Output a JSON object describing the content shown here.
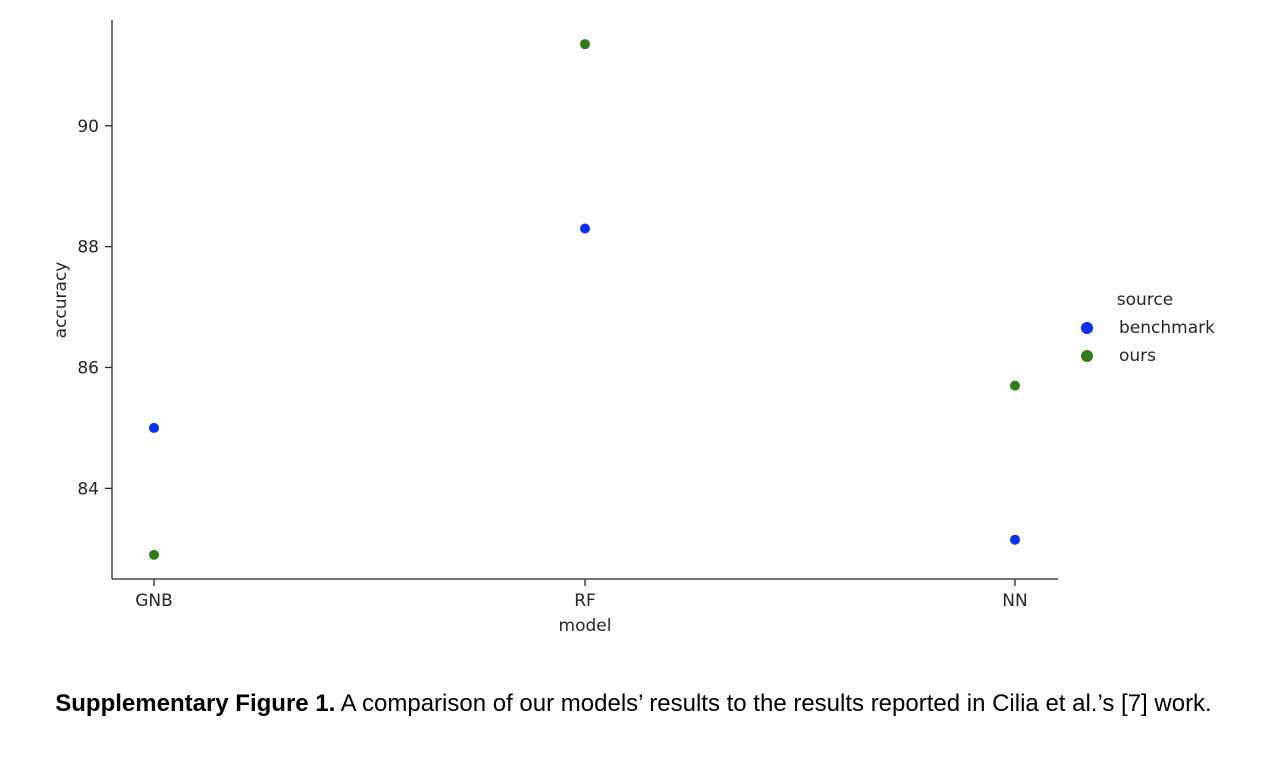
{
  "chart_data": {
    "type": "scatter",
    "categories": [
      "GNB",
      "RF",
      "NN"
    ],
    "series": [
      {
        "name": "benchmark",
        "color": "#0a2ff5",
        "values": [
          85.0,
          88.3,
          83.15
        ]
      },
      {
        "name": "ours",
        "color": "#2e7d19",
        "values": [
          82.9,
          91.35,
          85.7
        ]
      }
    ],
    "xlabel": "model",
    "ylabel": "accuracy",
    "yticks": [
      84,
      86,
      88,
      90
    ],
    "ylim": [
      82.5,
      91.75
    ],
    "legend": {
      "title": "source",
      "placement": "right"
    },
    "grid": false
  },
  "caption": {
    "label": "Supplementary Figure 1.",
    "text": " A comparison of our models’ results to the results reported in Cilia et al.’s [7] work."
  }
}
